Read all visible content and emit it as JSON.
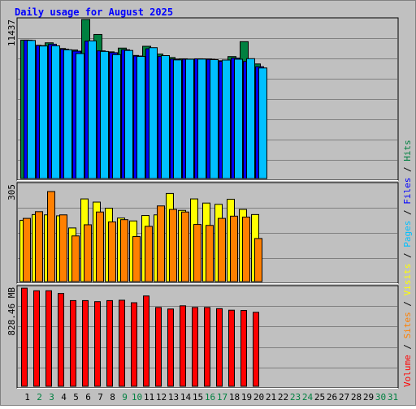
{
  "chart_data": {
    "type": "bar",
    "title": "Daily usage for August 2025",
    "days": [
      "1",
      "2",
      "3",
      "4",
      "5",
      "6",
      "7",
      "8",
      "9",
      "10",
      "11",
      "12",
      "13",
      "14",
      "15",
      "16",
      "17",
      "18",
      "19",
      "20",
      "21",
      "22",
      "23",
      "24",
      "25",
      "26",
      "27",
      "28",
      "29",
      "30",
      "31"
    ],
    "weekend_days": [
      "2",
      "3",
      "9",
      "10",
      "16",
      "17",
      "23",
      "24",
      "30",
      "31"
    ],
    "y_labels": {
      "top": "11437",
      "middle": "305",
      "bottom": "828.46 MB"
    },
    "legend": [
      "Volume",
      "Sites",
      "Visits",
      "Pages",
      "Files",
      "Hits"
    ],
    "colors": {
      "title": "#0000ff",
      "background": "#c0c0c0",
      "frame_border": "#808080",
      "hits": "#008040",
      "files": "#0000ff",
      "pages": "#00c0ff",
      "visits": "#ffff00",
      "sites": "#ff8000",
      "volume": "#ff0000",
      "weekend_label": "#008040",
      "weekday_label": "#000000",
      "separator": "#000000"
    },
    "panels": {
      "top": {
        "max": 11437,
        "series": [
          {
            "name": "Hits",
            "values": [
              9955,
              9580,
              9760,
              9350,
              9240,
              11437,
              10360,
              9110,
              9380,
              8850,
              9510,
              8950,
              8700,
              8610,
              8530,
              8600,
              8470,
              8770,
              9840,
              8240
            ]
          },
          {
            "name": "Files",
            "values": [
              9950,
              9560,
              9660,
              9300,
              9160,
              9880,
              9180,
              9050,
              9260,
              8810,
              9330,
              8790,
              8590,
              8580,
              8610,
              8570,
              8430,
              8660,
              8420,
              8040
            ]
          },
          {
            "name": "Pages",
            "values": [
              9930,
              9530,
              9540,
              9260,
              8990,
              9900,
              9140,
              8910,
              9210,
              8780,
              9410,
              8840,
              8530,
              8580,
              8590,
              8550,
              8520,
              8580,
              8620,
              7950
            ]
          }
        ]
      },
      "middle": {
        "max": 305,
        "series": [
          {
            "name": "Visits",
            "values": [
              192,
              210,
              209,
              206,
              168,
              259,
              249,
              230,
              199,
              190,
              207,
              209,
              276,
              223,
              259,
              246,
              242,
              258,
              226,
              210
            ]
          },
          {
            "name": "Sites",
            "values": [
              198,
              219,
              282,
              209,
              143,
              178,
              218,
              187,
              194,
              141,
              173,
              237,
              226,
              218,
              179,
              176,
              198,
              205,
              202,
              135
            ]
          }
        ]
      },
      "bottom": {
        "max": 828.46,
        "series": [
          {
            "name": "Volume",
            "values": [
              828,
              806,
              806,
              783,
              723,
              723,
              714,
              723,
              726,
              705,
              762,
              665,
              652,
              679,
              665,
              665,
              655,
              642,
              640,
              624
            ]
          }
        ]
      }
    }
  }
}
